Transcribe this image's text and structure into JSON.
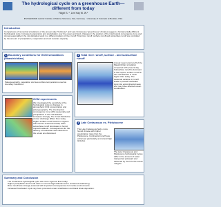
{
  "header": {
    "title": "The hydrological cycle on a greenhouse Earth—different from today",
    "authors": "Flögel S. *, Lee Hay W. W.*",
    "affiliations": "IFM-GEOMAR Leibniz Institute of Marine Sciences, Kiel, Germany · University of Colorado at Boulder, USA"
  },
  "intro": {
    "heading": "Introduction",
    "body": "Comparisons of numerical simulations of the present-day \"hothouse\" and Late Cretaceous \"greenhouse\" climates suggest a fundamentally different hydrological cycle. Increased evaporation and precipitation over the ocean and land, changes in the position of the intertropical convergence zone and strong seasonality in the mid-latitudes result in a different pattern of river runoff. Total river runoff, surface runoff and subsurface runoff are controlled by the amount of precipitation, evaporation and soil moisture capacity."
  },
  "left": [
    {
      "number": "1",
      "heading": "Boundary conditions for GCM simulations (Maastrichtian)",
      "body": "Paleogeography, vegetation and sea surface temperatures used as boundary conditions."
    },
    {
      "heading": "GCM experiments",
      "body": "We investigated the sensitivity of the hydrological cycle to changes in atmospheric CO2 concentration and paleogeography. The intertropical convergence zone shifts seasonally and precipitation in the mid-latitudes increases strongly. The zonal distribution of river discharge differs from today. Higher surface runoff occurs in regions with intense seasonal rainfall, while subsurface runoff dominates in humid tropical lowlands. Consequences for the delivery of freshwater and nutrients to the ocean are discussed."
    }
  ],
  "right": [
    {
      "number": "2",
      "heading": "Total river runoff, surface - and subsurface runoff",
      "body": "Annual mean total runoff of the Maastrichtian simulation compared with present day. Subsurface runoff is dominant in the tropics; surface runoff in the mid-latitudes is much higher than today. The seasonal variation in runoff leads to pulsed freshwater input into epicontinental seas and may have affected ocean stratification."
    },
    {
      "number": "3",
      "heading": "Late Cretaceous vs. Pleistocene",
      "body": "The Late Cretaceous had a more humid climate with higher precipitation rates than the Pleistocene. Continental runoff was enhanced particularly at mid and high latitudes.",
      "body2": "The Late Cretaceous and Pleistocene hydrological cycles differ in the amount of water transported poleward and delivered by rivers to the ocean margins."
    }
  ],
  "summary": {
    "heading": "Summary and Conclusion",
    "items": [
      "The Cretaceous hydrological cycle was more vigorous than today.",
      "Higher precipitation and runoff rates in mid and high latitudes led to enhanced weathering.",
      "River runoff was strongly seasonal with important consequences for marine environments.",
      "Increased freshwater input may have promoted ocean stratification and black shale deposition."
    ]
  }
}
